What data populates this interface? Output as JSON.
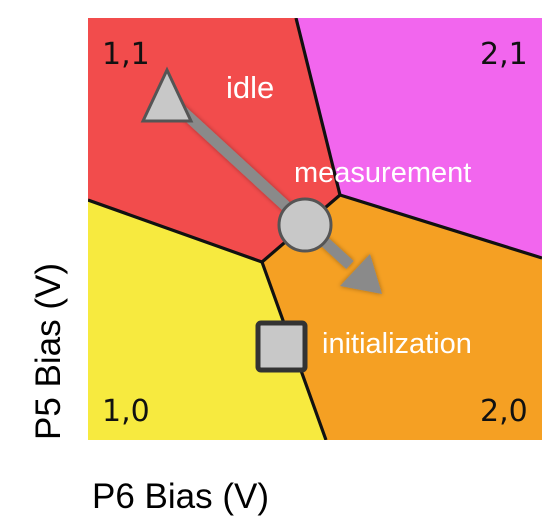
{
  "regions": [
    {
      "label": "1,1",
      "color": "#f24c4c"
    },
    {
      "label": "2,1",
      "color": "#f266ee"
    },
    {
      "label": "1,0",
      "color": "#f7ea3f"
    },
    {
      "label": "2,0",
      "color": "#f5a023"
    }
  ],
  "operating_points": [
    {
      "label": "idle",
      "marker": "triangle-icon"
    },
    {
      "label": "measurement",
      "marker": "circle-icon"
    },
    {
      "label": "initialization",
      "marker": "square-icon"
    }
  ],
  "axes": {
    "x_label": "P6 Bias (V)",
    "y_label": "P5 Bias (V)"
  },
  "colors": {
    "boundary": "#111111",
    "marker_fill": "#c8c8c8",
    "marker_stroke": "#555555",
    "arrow": "#8a8a8a"
  }
}
